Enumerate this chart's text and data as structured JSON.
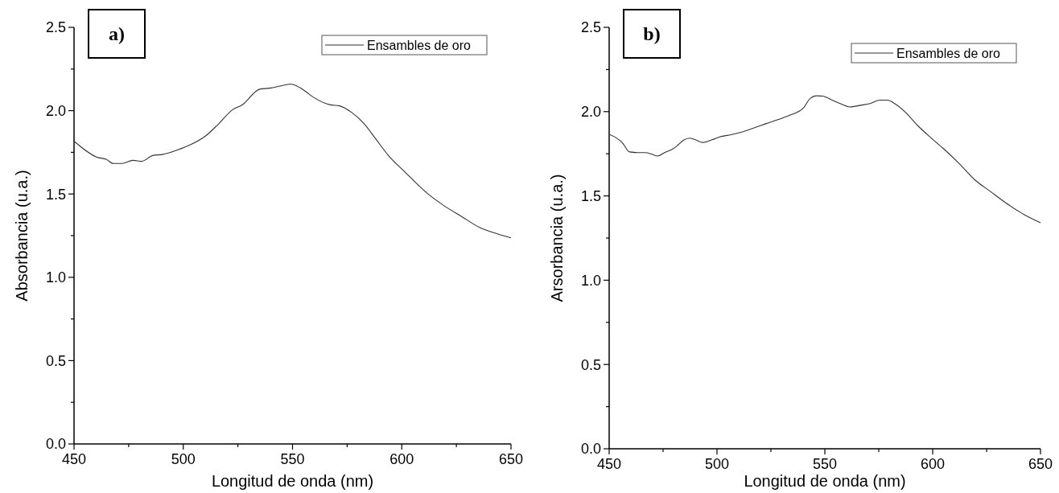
{
  "chart_data": [
    {
      "type": "line",
      "xlabel": "Longitud de onda (nm)",
      "ylabel": "Absorbancia (u.a.)",
      "annotations": [
        "a)"
      ],
      "legend": "top right",
      "grid": false,
      "marker": "none",
      "line_style": "solid",
      "xlim": [
        450,
        650
      ],
      "ylim": [
        0,
        2.5
      ],
      "xticks": [
        450,
        {
          "value": 475,
          "label": null
        },
        500,
        {
          "value": 525,
          "label": null
        },
        550,
        {
          "value": 575,
          "label": null
        },
        600,
        {
          "value": 625,
          "label": null
        },
        650
      ],
      "yticks": [
        {
          "value": 0,
          "label": "0.0"
        },
        {
          "value": 0.25,
          "label": null
        },
        0.5,
        {
          "value": 0.75,
          "label": null
        },
        {
          "value": 1,
          "label": "1.0"
        },
        {
          "value": 1.25,
          "label": null
        },
        1.5,
        {
          "value": 1.75,
          "label": null
        },
        {
          "value": 2,
          "label": "2.0"
        },
        {
          "value": 2.25,
          "label": null
        },
        2.5
      ],
      "series": [
        {
          "name": "Ensambles de oro",
          "color": "#333333",
          "x": [
            450,
            460.5,
            464.7,
            468,
            472,
            477,
            481,
            486,
            490.5,
            497.5,
            503,
            510,
            515.6,
            522.6,
            526.8,
            535,
            539.4,
            546.4,
            549,
            553.4,
            556,
            560,
            567.3,
            571.5,
            577,
            582.7,
            588.3,
            593.9,
            602,
            612,
            619,
            627.4,
            635.8,
            644,
            650
          ],
          "values": [
            1.817,
            1.721,
            1.708,
            1.683,
            1.683,
            1.702,
            1.696,
            1.731,
            1.737,
            1.765,
            1.794,
            1.846,
            1.913,
            2.006,
            2.033,
            2.129,
            2.135,
            2.154,
            2.16,
            2.138,
            2.115,
            2.077,
            2.035,
            2.029,
            1.99,
            1.923,
            1.827,
            1.731,
            1.625,
            1.5,
            1.433,
            1.365,
            1.298,
            1.26,
            1.237
          ]
        }
      ]
    },
    {
      "type": "line",
      "xlabel": "Longitud de onda (nm)",
      "ylabel": "Arsorbancia (u.a.)",
      "annotations": [
        "b)"
      ],
      "legend": "top right",
      "grid": false,
      "marker": "none",
      "line_style": "solid",
      "xlim": [
        450,
        650
      ],
      "ylim": [
        0,
        2.5
      ],
      "xticks": [
        450,
        {
          "value": 475,
          "label": null
        },
        500,
        {
          "value": 525,
          "label": null
        },
        550,
        {
          "value": 575,
          "label": null
        },
        600,
        {
          "value": 625,
          "label": null
        },
        650
      ],
      "yticks": [
        {
          "value": 0,
          "label": "0.0"
        },
        {
          "value": 0.25,
          "label": null
        },
        0.5,
        {
          "value": 0.75,
          "label": null
        },
        {
          "value": 1,
          "label": "1.0"
        },
        {
          "value": 1.25,
          "label": null
        },
        1.5,
        {
          "value": 1.75,
          "label": null
        },
        {
          "value": 2,
          "label": "2.0"
        },
        {
          "value": 2.25,
          "label": null
        },
        2.5
      ],
      "series": [
        {
          "name": "Ensambles de oro",
          "color": "#333333",
          "x": [
            450.4,
            453,
            456,
            459.5,
            463.2,
            466.9,
            469.8,
            472.5,
            475.7,
            479.3,
            481.5,
            484.5,
            487.4,
            490.4,
            493.3,
            497.7,
            502,
            506.5,
            512.4,
            518.2,
            522.6,
            528.5,
            534.4,
            540.2,
            543.2,
            546.1,
            549,
            553.4,
            557.8,
            561.5,
            566.7,
            571,
            575.5,
            579.1,
            582.8,
            587.2,
            593,
            599,
            604.8,
            612.2,
            619.5,
            626.8,
            634.2,
            641.5,
            650
          ],
          "values": [
            1.863,
            1.847,
            1.817,
            1.761,
            1.757,
            1.757,
            1.747,
            1.737,
            1.757,
            1.777,
            1.797,
            1.831,
            1.843,
            1.831,
            1.817,
            1.833,
            1.853,
            1.863,
            1.882,
            1.908,
            1.928,
            1.954,
            1.982,
            2.024,
            2.078,
            2.094,
            2.092,
            2.068,
            2.044,
            2.028,
            2.038,
            2.048,
            2.068,
            2.068,
            2.044,
            1.998,
            1.918,
            1.847,
            1.783,
            1.693,
            1.596,
            1.526,
            1.456,
            1.396,
            1.341
          ]
        }
      ]
    }
  ]
}
